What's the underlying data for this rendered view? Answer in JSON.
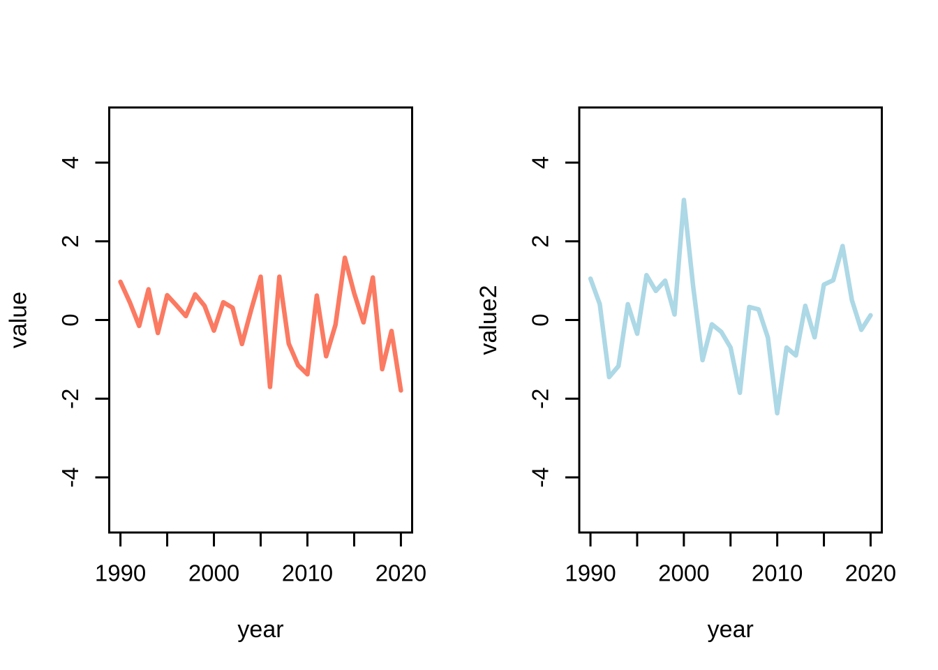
{
  "figure": {
    "background_color": "#ffffff",
    "axis_color": "#000000",
    "text_color": "#000000"
  },
  "chart_data": [
    {
      "type": "line",
      "title": "",
      "xlabel": "year",
      "ylabel": "value",
      "legend": "none",
      "grid": false,
      "line_color": "#FB7A62",
      "line_color_name": "salmon",
      "xlim": [
        1988.8,
        2021.2
      ],
      "ylim": [
        -5.4,
        5.4
      ],
      "x_ticks": [
        {
          "value": 1990,
          "label": "1990"
        },
        {
          "value": 1995,
          "label": ""
        },
        {
          "value": 2000,
          "label": "2000"
        },
        {
          "value": 2005,
          "label": ""
        },
        {
          "value": 2010,
          "label": "2010"
        },
        {
          "value": 2015,
          "label": ""
        },
        {
          "value": 2020,
          "label": "2020"
        }
      ],
      "y_ticks": [
        {
          "value": -4,
          "label": "-4"
        },
        {
          "value": -2,
          "label": "-2"
        },
        {
          "value": 0,
          "label": "0"
        },
        {
          "value": 2,
          "label": "2"
        },
        {
          "value": 4,
          "label": "4"
        }
      ],
      "x": [
        1990,
        1991,
        1992,
        1993,
        1994,
        1995,
        1996,
        1997,
        1998,
        1999,
        2000,
        2001,
        2002,
        2003,
        2004,
        2005,
        2006,
        2007,
        2008,
        2009,
        2010,
        2011,
        2012,
        2013,
        2014,
        2015,
        2016,
        2017,
        2018,
        2019,
        2020
      ],
      "y": [
        0.97,
        0.45,
        -0.15,
        0.78,
        -0.33,
        0.63,
        0.37,
        0.1,
        0.65,
        0.36,
        -0.27,
        0.45,
        0.31,
        -0.61,
        0.27,
        1.1,
        -1.7,
        1.1,
        -0.6,
        -1.15,
        -1.38,
        0.62,
        -0.92,
        -0.12,
        1.58,
        0.68,
        -0.06,
        1.08,
        -1.25,
        -0.28,
        -1.79
      ]
    },
    {
      "type": "line",
      "title": "",
      "xlabel": "year",
      "ylabel": "value2",
      "legend": "none",
      "grid": false,
      "line_color": "#ADD8E6",
      "line_color_name": "lightblue",
      "xlim": [
        1988.8,
        2021.2
      ],
      "ylim": [
        -5.4,
        5.4
      ],
      "x_ticks": [
        {
          "value": 1990,
          "label": "1990"
        },
        {
          "value": 1995,
          "label": ""
        },
        {
          "value": 2000,
          "label": "2000"
        },
        {
          "value": 2005,
          "label": ""
        },
        {
          "value": 2010,
          "label": "2010"
        },
        {
          "value": 2015,
          "label": ""
        },
        {
          "value": 2020,
          "label": "2020"
        }
      ],
      "y_ticks": [
        {
          "value": -4,
          "label": "-4"
        },
        {
          "value": -2,
          "label": "-2"
        },
        {
          "value": 0,
          "label": "0"
        },
        {
          "value": 2,
          "label": "2"
        },
        {
          "value": 4,
          "label": "4"
        }
      ],
      "x": [
        1990,
        1991,
        1992,
        1993,
        1994,
        1995,
        1996,
        1997,
        1998,
        1999,
        2000,
        2001,
        2002,
        2003,
        2004,
        2005,
        2006,
        2007,
        2008,
        2009,
        2010,
        2011,
        2012,
        2013,
        2014,
        2015,
        2016,
        2017,
        2018,
        2019,
        2020
      ],
      "y": [
        1.05,
        0.4,
        -1.45,
        -1.17,
        0.4,
        -0.35,
        1.14,
        0.74,
        1.0,
        0.14,
        3.05,
        0.85,
        -1.02,
        -0.11,
        -0.3,
        -0.7,
        -1.85,
        0.33,
        0.27,
        -0.45,
        -2.37,
        -0.7,
        -0.9,
        0.36,
        -0.44,
        0.9,
        1.01,
        1.88,
        0.5,
        -0.25,
        0.12
      ]
    }
  ]
}
